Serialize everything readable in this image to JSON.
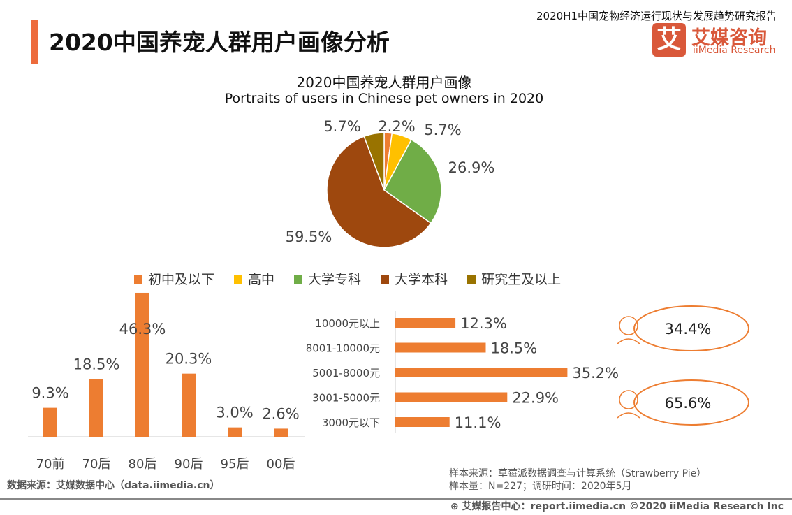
{
  "header": {
    "title": "2020中国养宠人群用户画像分析",
    "report": "2020H1中国宠物经济运行现状与发展趋势研究报告",
    "logo_cn": "艾媒咨询",
    "logo_en": "iiMedia Research",
    "logo_mark": "艾"
  },
  "colors": {
    "accent": "#ED7D31",
    "brand": "#D9583A"
  },
  "chart_data": [
    {
      "type": "pie",
      "title": "2020中国养宠人群用户画像",
      "subtitle": "Portraits of users in Chinese pet owners in 2020",
      "categories": [
        "初中及以下",
        "高中",
        "大学专科",
        "大学本科",
        "研究生及以上"
      ],
      "values": [
        2.2,
        5.7,
        26.9,
        59.5,
        5.7
      ],
      "labels": [
        "2.2%",
        "5.7%",
        "26.9%",
        "59.5%",
        "5.7%"
      ],
      "colors": [
        "#ED7D31",
        "#FFC000",
        "#70AD47",
        "#9E480E",
        "#997300"
      ],
      "legend": "bottom"
    },
    {
      "type": "bar",
      "categories": [
        "70前",
        "70后",
        "80后",
        "90后",
        "95后",
        "00后"
      ],
      "values": [
        9.3,
        18.5,
        46.3,
        20.3,
        3.0,
        2.6
      ],
      "labels": [
        "9.3%",
        "18.5%",
        "46.3%",
        "20.3%",
        "3.0%",
        "2.6%"
      ],
      "color": "#ED7D31"
    },
    {
      "type": "bar",
      "orientation": "horizontal",
      "categories": [
        "10000元以上",
        "8001-10000元",
        "5001-8000元",
        "3001-5000元",
        "3000元以下"
      ],
      "values": [
        12.3,
        18.5,
        35.2,
        22.9,
        11.1
      ],
      "labels": [
        "12.3%",
        "18.5%",
        "35.2%",
        "22.9%",
        "11.1%"
      ],
      "color": "#ED7D31"
    },
    {
      "type": "table",
      "categories": [
        "female-icon",
        "male-icon"
      ],
      "values": [
        34.4,
        65.6
      ],
      "labels": [
        "34.4%",
        "65.6%"
      ]
    }
  ],
  "source_left": "数据来源：艾媒数据中心（data.iimedia.cn）",
  "sample_source": "样本来源：草莓派数据调查与计算系统（Strawberry Pie）",
  "sample_size": "样本量：N=227；调研时间：2020年5月",
  "footer": "艾媒报告中心：report.iimedia.cn   ©2020  iiMedia Research  Inc"
}
